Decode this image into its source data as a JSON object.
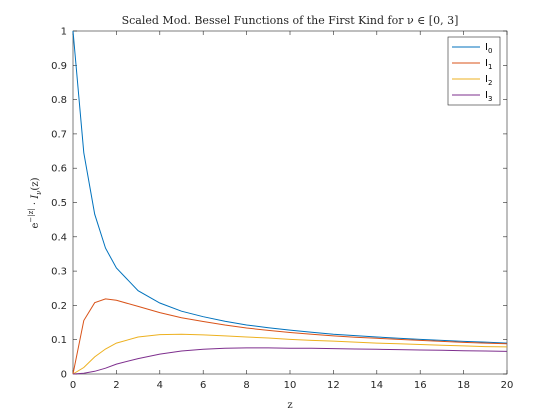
{
  "chart_data": {
    "type": "line",
    "title": "Scaled Mod. Bessel Functions of the First Kind for ν ∈ [0, 3]",
    "xlabel": "z",
    "ylabel": "e^(−|z|) · I_ν(z)",
    "xlim": [
      0,
      20
    ],
    "ylim": [
      0,
      1
    ],
    "xticks": [
      "0",
      "2",
      "4",
      "6",
      "8",
      "10",
      "12",
      "14",
      "16",
      "18",
      "20"
    ],
    "yticks": [
      "0",
      "0.1",
      "0.2",
      "0.3",
      "0.4",
      "0.5",
      "0.6",
      "0.7",
      "0.8",
      "0.9",
      "1"
    ],
    "grid": false,
    "legend_position": "top-right",
    "x": [
      0,
      0.5,
      1,
      1.5,
      2,
      3,
      4,
      5,
      6,
      7,
      8,
      9,
      10,
      11,
      12,
      13,
      14,
      15,
      16,
      17,
      18,
      19,
      20
    ],
    "series": [
      {
        "name": "I0",
        "base": "I",
        "sub": "0",
        "color": "#0072BD",
        "values": [
          1,
          0.645,
          0.466,
          0.367,
          0.309,
          0.243,
          0.207,
          0.183,
          0.167,
          0.154,
          0.143,
          0.135,
          0.128,
          0.122,
          0.116,
          0.112,
          0.108,
          0.104,
          0.101,
          0.098,
          0.095,
          0.093,
          0.09
        ]
      },
      {
        "name": "I1",
        "base": "I",
        "sub": "1",
        "color": "#D95319",
        "values": [
          0,
          0.156,
          0.208,
          0.219,
          0.215,
          0.197,
          0.179,
          0.164,
          0.153,
          0.143,
          0.134,
          0.127,
          0.121,
          0.116,
          0.111,
          0.107,
          0.104,
          0.101,
          0.098,
          0.095,
          0.092,
          0.09,
          0.088
        ]
      },
      {
        "name": "I2",
        "base": "I",
        "sub": "2",
        "color": "#EDB120",
        "values": [
          0,
          0.019,
          0.05,
          0.073,
          0.09,
          0.108,
          0.115,
          0.116,
          0.114,
          0.111,
          0.108,
          0.105,
          0.101,
          0.098,
          0.096,
          0.093,
          0.09,
          0.088,
          0.086,
          0.084,
          0.082,
          0.08,
          0.079
        ]
      },
      {
        "name": "I3",
        "base": "I",
        "sub": "3",
        "color": "#7E2F8E",
        "values": [
          0,
          0.002,
          0.008,
          0.017,
          0.029,
          0.045,
          0.058,
          0.067,
          0.072,
          0.075,
          0.076,
          0.076,
          0.075,
          0.075,
          0.074,
          0.073,
          0.072,
          0.071,
          0.07,
          0.069,
          0.068,
          0.067,
          0.066
        ]
      }
    ]
  }
}
